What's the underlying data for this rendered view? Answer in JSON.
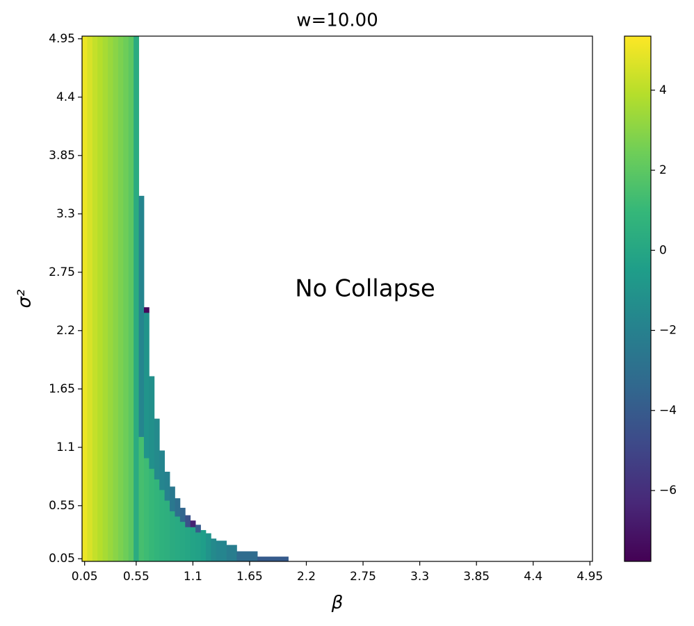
{
  "chart_data": {
    "type": "heatmap",
    "title": "w=10.00",
    "xlabel": "β",
    "ylabel": "σ²",
    "annotation": "No Collapse",
    "colormap": "viridis",
    "xlim": [
      0.025,
      4.975
    ],
    "ylim": [
      0.025,
      4.975
    ],
    "xticks": [
      0.05,
      0.55,
      1.1,
      1.65,
      2.2,
      2.75,
      3.3,
      3.85,
      4.4,
      4.95
    ],
    "yticks": [
      0.05,
      0.55,
      1.1,
      1.65,
      2.2,
      2.75,
      3.3,
      3.85,
      4.4,
      4.95
    ],
    "clim": [
      -7.77,
      5.35
    ],
    "cticks": [
      {
        "value": -6,
        "label": "−6"
      },
      {
        "value": -4,
        "label": "−4"
      },
      {
        "value": -2,
        "label": "−2"
      },
      0,
      2,
      4
    ],
    "cells": [
      {
        "x0": 0.025,
        "x1": 0.075,
        "y0": 0.025,
        "y1": 4.975,
        "value": 5.0
      },
      {
        "x0": 0.075,
        "x1": 0.125,
        "y0": 0.025,
        "y1": 4.975,
        "value": 4.6
      },
      {
        "x0": 0.125,
        "x1": 0.175,
        "y0": 0.025,
        "y1": 4.975,
        "value": 4.2
      },
      {
        "x0": 0.175,
        "x1": 0.225,
        "y0": 0.025,
        "y1": 4.975,
        "value": 3.9
      },
      {
        "x0": 0.225,
        "x1": 0.275,
        "y0": 0.025,
        "y1": 4.975,
        "value": 3.6
      },
      {
        "x0": 0.275,
        "x1": 0.325,
        "y0": 0.025,
        "y1": 4.975,
        "value": 3.3
      },
      {
        "x0": 0.325,
        "x1": 0.375,
        "y0": 0.025,
        "y1": 4.975,
        "value": 3.0
      },
      {
        "x0": 0.375,
        "x1": 0.425,
        "y0": 0.025,
        "y1": 4.975,
        "value": 2.7
      },
      {
        "x0": 0.425,
        "x1": 0.475,
        "y0": 0.025,
        "y1": 4.975,
        "value": 2.4
      },
      {
        "x0": 0.475,
        "x1": 0.525,
        "y0": 0.025,
        "y1": 4.975,
        "value": 2.0
      },
      {
        "x0": 0.525,
        "x1": 0.575,
        "y0": 0.025,
        "y1": 4.975,
        "value": 0.3
      },
      {
        "x0": 0.575,
        "x1": 0.625,
        "y0": 0.025,
        "y1": 1.2,
        "value": 1.4
      },
      {
        "x0": 0.575,
        "x1": 0.625,
        "y0": 1.2,
        "y1": 3.47,
        "value": -1.8
      },
      {
        "x0": 0.625,
        "x1": 0.675,
        "y0": 0.025,
        "y1": 1.0,
        "value": 1.2
      },
      {
        "x0": 0.625,
        "x1": 0.675,
        "y0": 1.0,
        "y1": 2.37,
        "value": -1.0
      },
      {
        "x0": 0.625,
        "x1": 0.675,
        "y0": 2.37,
        "y1": 2.42,
        "value": -7.5
      },
      {
        "x0": 0.675,
        "x1": 0.725,
        "y0": 0.025,
        "y1": 0.9,
        "value": 1.0
      },
      {
        "x0": 0.675,
        "x1": 0.725,
        "y0": 0.9,
        "y1": 1.77,
        "value": -1.2
      },
      {
        "x0": 0.725,
        "x1": 0.775,
        "y0": 0.025,
        "y1": 0.8,
        "value": 0.8
      },
      {
        "x0": 0.725,
        "x1": 0.775,
        "y0": 0.8,
        "y1": 1.37,
        "value": -1.5
      },
      {
        "x0": 0.775,
        "x1": 0.825,
        "y0": 0.025,
        "y1": 0.7,
        "value": 0.6
      },
      {
        "x0": 0.775,
        "x1": 0.825,
        "y0": 0.7,
        "y1": 1.07,
        "value": -1.8
      },
      {
        "x0": 0.825,
        "x1": 0.875,
        "y0": 0.025,
        "y1": 0.6,
        "value": 0.5
      },
      {
        "x0": 0.825,
        "x1": 0.875,
        "y0": 0.6,
        "y1": 0.87,
        "value": -2.0
      },
      {
        "x0": 0.875,
        "x1": 0.925,
        "y0": 0.025,
        "y1": 0.5,
        "value": 0.3
      },
      {
        "x0": 0.875,
        "x1": 0.925,
        "y0": 0.5,
        "y1": 0.73,
        "value": -2.5
      },
      {
        "x0": 0.925,
        "x1": 0.975,
        "y0": 0.025,
        "y1": 0.45,
        "value": 0.2
      },
      {
        "x0": 0.925,
        "x1": 0.975,
        "y0": 0.45,
        "y1": 0.62,
        "value": -3.0
      },
      {
        "x0": 0.975,
        "x1": 1.025,
        "y0": 0.025,
        "y1": 0.4,
        "value": 0.1
      },
      {
        "x0": 0.975,
        "x1": 1.025,
        "y0": 0.4,
        "y1": 0.53,
        "value": -3.5
      },
      {
        "x0": 1.025,
        "x1": 1.075,
        "y0": 0.025,
        "y1": 0.35,
        "value": 0.0
      },
      {
        "x0": 1.025,
        "x1": 1.075,
        "y0": 0.35,
        "y1": 0.46,
        "value": -4.5
      },
      {
        "x0": 1.075,
        "x1": 1.125,
        "y0": 0.025,
        "y1": 0.35,
        "value": -0.2
      },
      {
        "x0": 1.075,
        "x1": 1.125,
        "y0": 0.35,
        "y1": 0.41,
        "value": -6.5
      },
      {
        "x0": 1.125,
        "x1": 1.175,
        "y0": 0.025,
        "y1": 0.3,
        "value": -0.3
      },
      {
        "x0": 1.125,
        "x1": 1.175,
        "y0": 0.3,
        "y1": 0.37,
        "value": -4.0
      },
      {
        "x0": 1.175,
        "x1": 1.225,
        "y0": 0.025,
        "y1": 0.32,
        "value": -0.5
      },
      {
        "x0": 1.225,
        "x1": 1.275,
        "y0": 0.025,
        "y1": 0.29,
        "value": -1.0
      },
      {
        "x0": 1.275,
        "x1": 1.325,
        "y0": 0.025,
        "y1": 0.24,
        "value": -1.5
      },
      {
        "x0": 1.325,
        "x1": 1.425,
        "y0": 0.025,
        "y1": 0.22,
        "value": -1.8
      },
      {
        "x0": 1.425,
        "x1": 1.525,
        "y0": 0.025,
        "y1": 0.18,
        "value": -2.2
      },
      {
        "x0": 1.525,
        "x1": 1.725,
        "y0": 0.025,
        "y1": 0.12,
        "value": -3.2
      },
      {
        "x0": 1.725,
        "x1": 2.025,
        "y0": 0.025,
        "y1": 0.07,
        "value": -4.0
      }
    ]
  }
}
